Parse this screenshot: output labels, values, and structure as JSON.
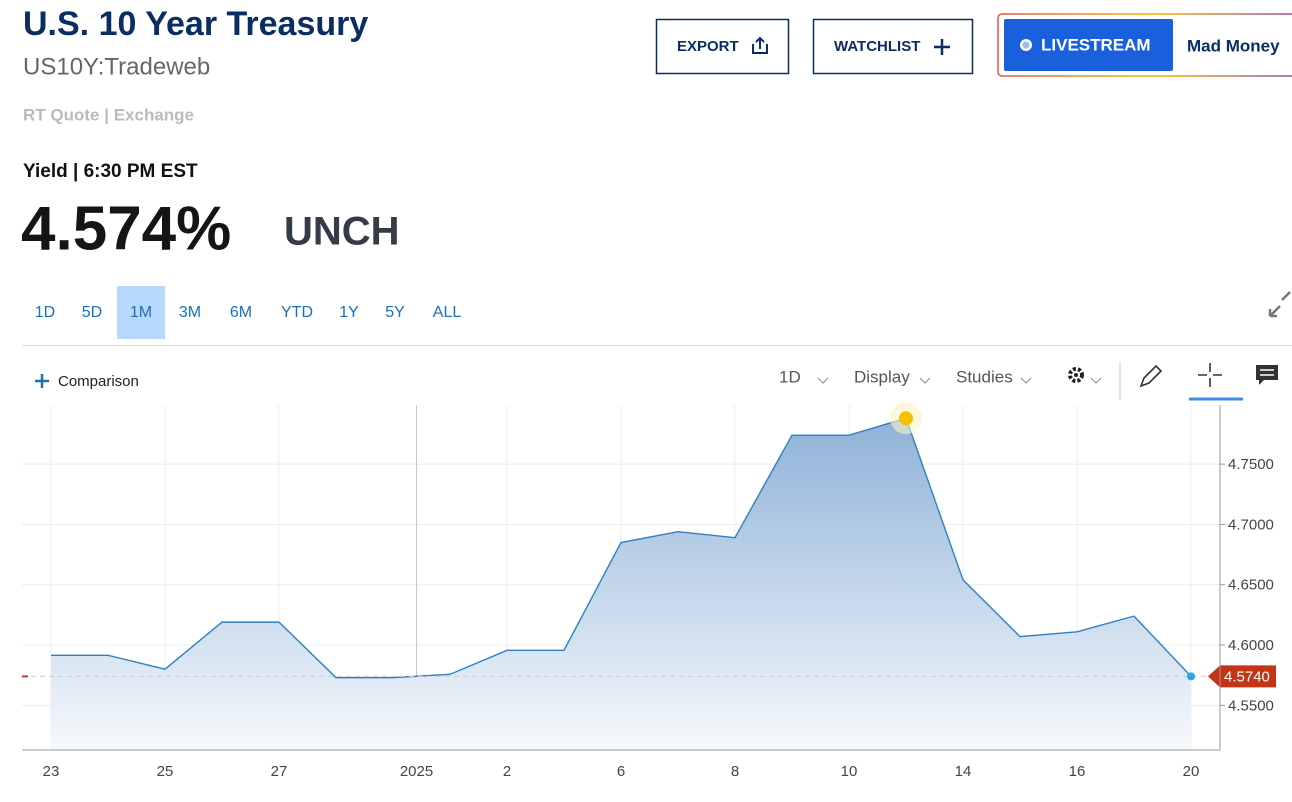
{
  "header": {
    "title": "U.S. 10 Year Treasury",
    "symbol": "US10Y:Tradeweb",
    "quote_source": "RT Quote | Exchange"
  },
  "actions": [
    "EXPORT",
    "WATCHLIST"
  ],
  "livestream": {
    "button": "LIVESTREAM",
    "show": "Mad Money"
  },
  "quote": {
    "label": "Yield | 6:30 PM EST",
    "price": "4.574%",
    "change": "UNCH"
  },
  "ranges": [
    "1D",
    "5D",
    "1M",
    "3M",
    "6M",
    "YTD",
    "1Y",
    "5Y",
    "ALL"
  ],
  "selected_range_index": 2,
  "toolbar": {
    "comparison": "Comparison",
    "interval": "1D",
    "display": "Display",
    "studies": "Studies"
  },
  "chart_data": {
    "type": "line",
    "categories": [
      "23",
      null,
      "25",
      null,
      "27",
      null,
      null,
      null,
      "2",
      null,
      "6",
      null,
      "8",
      null,
      "10",
      null,
      "14",
      null,
      "16",
      null,
      "20"
    ],
    "values": [
      4.5915,
      4.5915,
      4.58,
      4.619,
      4.619,
      4.573,
      4.573,
      4.5757,
      4.5956,
      4.5956,
      4.685,
      4.694,
      4.689,
      4.774,
      4.774,
      4.788,
      4.654,
      4.607,
      4.611,
      4.624,
      4.574
    ],
    "color": "#2f80c3",
    "year_marker": "2025",
    "last_price": {
      "value": 4.574,
      "label": "4.5740"
    },
    "ylim": [
      4.513,
      4.799
    ],
    "yticks": [
      {
        "value": 4.75,
        "label": "4.7500"
      },
      {
        "value": 4.7,
        "label": "4.7000"
      },
      {
        "value": 4.65,
        "label": "4.6500"
      },
      {
        "value": 4.6,
        "label": "4.6000"
      },
      {
        "value": 4.55,
        "label": "4.5500"
      }
    ],
    "grid": true
  }
}
